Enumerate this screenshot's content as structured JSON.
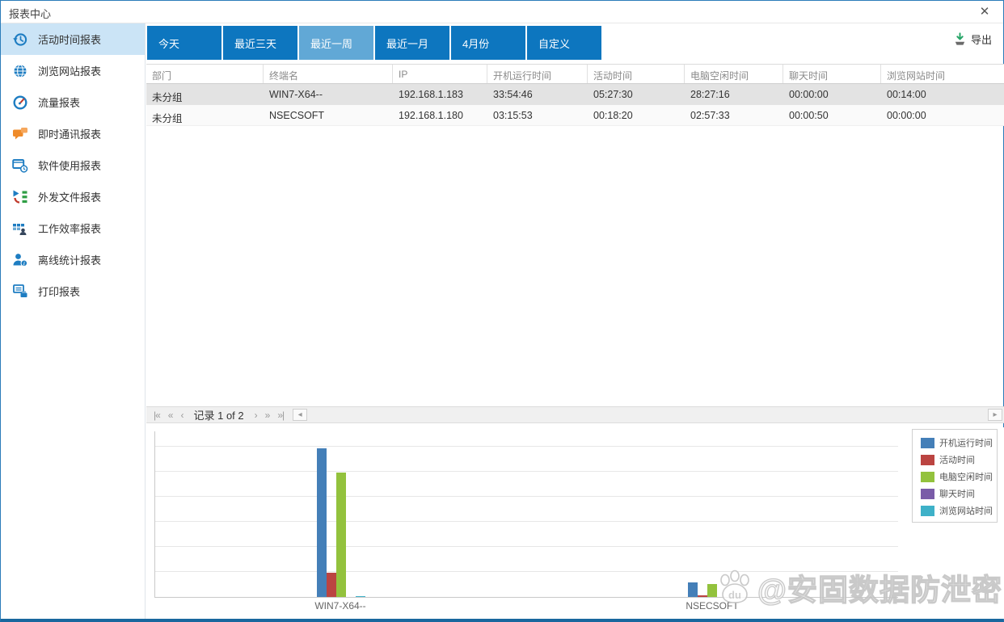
{
  "window": {
    "title": "报表中心",
    "close_glyph": "✕"
  },
  "sidebar": {
    "items": [
      {
        "label": "活动时间报表",
        "icon": "history-icon",
        "active": true
      },
      {
        "label": "浏览网站报表",
        "icon": "globe-icon",
        "active": false
      },
      {
        "label": "流量报表",
        "icon": "gauge-icon",
        "active": false
      },
      {
        "label": "即时通讯报表",
        "icon": "chat-icon",
        "active": false
      },
      {
        "label": "软件使用报表",
        "icon": "software-icon",
        "active": false
      },
      {
        "label": "外发文件报表",
        "icon": "outgoing-file-icon",
        "active": false
      },
      {
        "label": "工作效率报表",
        "icon": "efficiency-icon",
        "active": false
      },
      {
        "label": "离线统计报表",
        "icon": "offline-stats-icon",
        "active": false
      },
      {
        "label": "打印报表",
        "icon": "print-icon",
        "active": false
      }
    ]
  },
  "toolbar": {
    "tabs": [
      {
        "label": "今天",
        "active": false
      },
      {
        "label": "最近三天",
        "active": false
      },
      {
        "label": "最近一周",
        "active": true
      },
      {
        "label": "最近一月",
        "active": false
      },
      {
        "label": "4月份",
        "active": false
      },
      {
        "label": "自定义",
        "active": false
      }
    ],
    "export_label": "导出"
  },
  "table": {
    "columns": [
      "部门",
      "终端名",
      "IP",
      "开机运行时间",
      "活动时间",
      "电脑空闲时间",
      "聊天时间",
      "浏览网站时间"
    ],
    "rows": [
      [
        "未分组",
        "WIN7-X64--",
        "192.168.1.183",
        "33:54:46",
        "05:27:30",
        "28:27:16",
        "00:00:00",
        "00:14:00"
      ],
      [
        "未分组",
        "NSECSOFT",
        "192.168.1.180",
        "03:15:53",
        "00:18:20",
        "02:57:33",
        "00:00:50",
        "00:00:00"
      ]
    ]
  },
  "pagination": {
    "record_text": "记录 1 of 2",
    "first": "|«",
    "prev_fast": "«",
    "prev": "‹",
    "next": "›",
    "next_fast": "»",
    "last": "»|",
    "scroll_left": "◂",
    "scroll_right": "▸"
  },
  "chart_data": {
    "type": "bar",
    "categories": [
      "WIN7-X64--",
      "NSECSOFT"
    ],
    "series": [
      {
        "name": "开机运行时间",
        "color": "#447fb8",
        "values": [
          33.91,
          3.26
        ]
      },
      {
        "name": "活动时间",
        "color": "#bb4441",
        "values": [
          5.46,
          0.31
        ]
      },
      {
        "name": "电脑空闲时间",
        "color": "#93c23d",
        "values": [
          28.45,
          2.96
        ]
      },
      {
        "name": "聊天时间",
        "color": "#7a5ca8",
        "values": [
          0,
          0.01
        ]
      },
      {
        "name": "浏览网站时间",
        "color": "#3eb1c8",
        "values": [
          0.23,
          0
        ]
      }
    ],
    "unit": "hours",
    "ylim": [
      0,
      38
    ],
    "gridlines": 6,
    "grid": true,
    "legend_position": "top-right",
    "title": "",
    "xlabel": "",
    "ylabel": ""
  },
  "watermark": {
    "logo_text": "du",
    "text": "@安固数据防泄密"
  }
}
